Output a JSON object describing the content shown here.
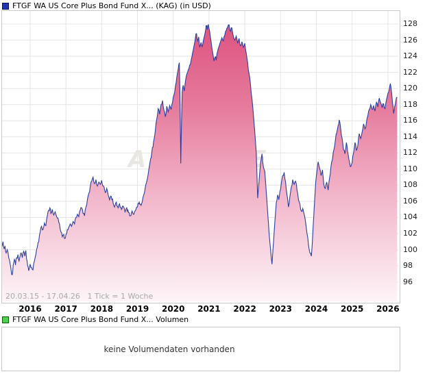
{
  "header": {
    "title": "FTGF WA US Core Plus Bond Fund X... (KAG) (in USD)"
  },
  "volume_panel": {
    "title": "FTGF WA US Core Plus Bond Fund X... Volumen",
    "message": "keine Volumendaten vorhanden"
  },
  "theme": {
    "line": "#2b3e9e",
    "fill_top": "#dd537f",
    "fill_mid1": "#e67b9d",
    "fill_mid2": "#f2b6ca",
    "fill_bottom": "#fdf4f8",
    "grid": "#e4e4e4",
    "plot_border": "#c9c9c9",
    "axis_text": "#1a1a1a",
    "muted_text": "#a8a8a8",
    "watermark_color": "#eae6e1",
    "legend_blue_fill": "#2133b0",
    "legend_blue_border": "#0a1560",
    "legend_green_fill": "#4ad44a",
    "legend_green_border": "#0a540a"
  },
  "chart_data": {
    "type": "area",
    "series_name": "FTGF WA US Core Plus Bond Fund X... (KAG)",
    "currency": "USD",
    "title": "FTGF WA US Core Plus Bond Fund X... (KAG) (in USD)",
    "date_range_label": "20.03.15 - 17.04.26",
    "tick_note": "1 Tick = 1 Woche",
    "watermark": "ARIVA.DE",
    "grid": true,
    "y_axis_side": "right",
    "x_ticks": [
      2016,
      2017,
      2018,
      2019,
      2020,
      2021,
      2022,
      2023,
      2024,
      2025,
      2026
    ],
    "y_ticks": [
      96,
      98,
      100,
      102,
      104,
      106,
      108,
      110,
      112,
      114,
      116,
      118,
      120,
      122,
      124,
      126,
      128
    ],
    "xlim": [
      "2015-03-20",
      "2026-04-17"
    ],
    "ylim": [
      93.4,
      129.6
    ],
    "x_start_decimal_year": 2015.215,
    "x_end_decimal_year": 2026.29,
    "points": [
      [
        2015.215,
        100.4
      ],
      [
        2015.24,
        101.0
      ],
      [
        2015.27,
        100.1
      ],
      [
        2015.3,
        100.4
      ],
      [
        2015.33,
        99.6
      ],
      [
        2015.36,
        100.0
      ],
      [
        2015.4,
        99.0
      ],
      [
        2015.44,
        98.3
      ],
      [
        2015.47,
        97.4
      ],
      [
        2015.5,
        96.9
      ],
      [
        2015.53,
        98.2
      ],
      [
        2015.56,
        98.8
      ],
      [
        2015.59,
        98.1
      ],
      [
        2015.62,
        99.0
      ],
      [
        2015.66,
        99.4
      ],
      [
        2015.69,
        98.6
      ],
      [
        2015.72,
        99.2
      ],
      [
        2015.75,
        99.6
      ],
      [
        2015.78,
        99.0
      ],
      [
        2015.82,
        99.8
      ],
      [
        2015.85,
        99.2
      ],
      [
        2015.88,
        99.9
      ],
      [
        2015.9,
        98.9
      ],
      [
        2015.93,
        98.0
      ],
      [
        2015.96,
        97.4
      ],
      [
        2016.0,
        98.2
      ],
      [
        2016.04,
        97.8
      ],
      [
        2016.08,
        97.5
      ],
      [
        2016.12,
        98.6
      ],
      [
        2016.16,
        99.4
      ],
      [
        2016.2,
        100.3
      ],
      [
        2016.24,
        101.0
      ],
      [
        2016.28,
        102.2
      ],
      [
        2016.32,
        102.9
      ],
      [
        2016.36,
        102.5
      ],
      [
        2016.4,
        103.3
      ],
      [
        2016.44,
        103.0
      ],
      [
        2016.48,
        104.2
      ],
      [
        2016.52,
        104.9
      ],
      [
        2016.55,
        105.2
      ],
      [
        2016.58,
        104.5
      ],
      [
        2016.62,
        105.0
      ],
      [
        2016.66,
        104.3
      ],
      [
        2016.7,
        104.7
      ],
      [
        2016.74,
        104.1
      ],
      [
        2016.78,
        103.9
      ],
      [
        2016.82,
        103.2
      ],
      [
        2016.86,
        102.2
      ],
      [
        2016.9,
        101.6
      ],
      [
        2016.94,
        101.9
      ],
      [
        2016.97,
        101.4
      ],
      [
        2017.0,
        101.9
      ],
      [
        2017.04,
        102.5
      ],
      [
        2017.08,
        102.8
      ],
      [
        2017.12,
        103.2
      ],
      [
        2017.16,
        102.9
      ],
      [
        2017.2,
        103.5
      ],
      [
        2017.24,
        103.2
      ],
      [
        2017.28,
        104.0
      ],
      [
        2017.32,
        104.4
      ],
      [
        2017.36,
        104.1
      ],
      [
        2017.4,
        104.9
      ],
      [
        2017.44,
        105.2
      ],
      [
        2017.48,
        104.5
      ],
      [
        2017.52,
        104.2
      ],
      [
        2017.56,
        105.3
      ],
      [
        2017.6,
        106.2
      ],
      [
        2017.64,
        107.0
      ],
      [
        2017.68,
        107.8
      ],
      [
        2017.72,
        108.5
      ],
      [
        2017.76,
        109.0
      ],
      [
        2017.8,
        108.2
      ],
      [
        2017.84,
        108.7
      ],
      [
        2017.88,
        107.9
      ],
      [
        2017.92,
        108.4
      ],
      [
        2017.96,
        108.1
      ],
      [
        2018.0,
        108.6
      ],
      [
        2018.05,
        107.9
      ],
      [
        2018.1,
        107.1
      ],
      [
        2018.14,
        107.6
      ],
      [
        2018.18,
        106.8
      ],
      [
        2018.22,
        106.2
      ],
      [
        2018.27,
        106.6
      ],
      [
        2018.32,
        105.8
      ],
      [
        2018.36,
        105.3
      ],
      [
        2018.41,
        105.9
      ],
      [
        2018.46,
        105.2
      ],
      [
        2018.5,
        105.7
      ],
      [
        2018.55,
        105.0
      ],
      [
        2018.6,
        105.4
      ],
      [
        2018.65,
        104.7
      ],
      [
        2018.7,
        105.2
      ],
      [
        2018.75,
        104.6
      ],
      [
        2018.8,
        104.2
      ],
      [
        2018.85,
        104.8
      ],
      [
        2018.9,
        104.4
      ],
      [
        2018.95,
        104.9
      ],
      [
        2019.0,
        105.3
      ],
      [
        2019.05,
        105.9
      ],
      [
        2019.1,
        105.5
      ],
      [
        2019.15,
        106.4
      ],
      [
        2019.2,
        107.2
      ],
      [
        2019.25,
        108.3
      ],
      [
        2019.3,
        109.4
      ],
      [
        2019.35,
        110.8
      ],
      [
        2019.4,
        112.0
      ],
      [
        2019.45,
        113.4
      ],
      [
        2019.5,
        114.8
      ],
      [
        2019.54,
        116.2
      ],
      [
        2019.58,
        117.5
      ],
      [
        2019.62,
        116.8
      ],
      [
        2019.66,
        118.0
      ],
      [
        2019.7,
        118.5
      ],
      [
        2019.74,
        117.3
      ],
      [
        2019.78,
        116.5
      ],
      [
        2019.82,
        117.8
      ],
      [
        2019.86,
        117.1
      ],
      [
        2019.9,
        117.9
      ],
      [
        2019.94,
        117.4
      ],
      [
        2019.98,
        118.3
      ],
      [
        2020.02,
        119.2
      ],
      [
        2020.06,
        120.3
      ],
      [
        2020.1,
        121.4
      ],
      [
        2020.14,
        122.4
      ],
      [
        2020.17,
        123.2
      ],
      [
        2020.19,
        119.0
      ],
      [
        2020.21,
        110.7
      ],
      [
        2020.23,
        115.5
      ],
      [
        2020.25,
        119.6
      ],
      [
        2020.28,
        120.4
      ],
      [
        2020.31,
        119.7
      ],
      [
        2020.34,
        120.9
      ],
      [
        2020.38,
        121.8
      ],
      [
        2020.42,
        122.3
      ],
      [
        2020.46,
        122.9
      ],
      [
        2020.5,
        123.5
      ],
      [
        2020.54,
        124.4
      ],
      [
        2020.58,
        125.3
      ],
      [
        2020.62,
        126.3
      ],
      [
        2020.65,
        126.8
      ],
      [
        2020.68,
        125.9
      ],
      [
        2020.71,
        126.4
      ],
      [
        2020.74,
        125.1
      ],
      [
        2020.78,
        125.7
      ],
      [
        2020.81,
        125.2
      ],
      [
        2020.85,
        126.1
      ],
      [
        2020.89,
        126.9
      ],
      [
        2020.92,
        127.8
      ],
      [
        2020.95,
        127.3
      ],
      [
        2020.98,
        127.9
      ],
      [
        2021.02,
        127.0
      ],
      [
        2021.06,
        125.8
      ],
      [
        2021.1,
        124.5
      ],
      [
        2021.14,
        123.4
      ],
      [
        2021.17,
        123.9
      ],
      [
        2021.2,
        123.5
      ],
      [
        2021.24,
        124.6
      ],
      [
        2021.28,
        125.2
      ],
      [
        2021.32,
        125.8
      ],
      [
        2021.36,
        126.3
      ],
      [
        2021.4,
        125.9
      ],
      [
        2021.44,
        126.6
      ],
      [
        2021.48,
        127.2
      ],
      [
        2021.52,
        127.6
      ],
      [
        2021.56,
        127.9
      ],
      [
        2021.6,
        127.1
      ],
      [
        2021.64,
        127.5
      ],
      [
        2021.68,
        126.5
      ],
      [
        2021.72,
        126.0
      ],
      [
        2021.76,
        126.5
      ],
      [
        2021.8,
        125.6
      ],
      [
        2021.84,
        126.2
      ],
      [
        2021.88,
        125.3
      ],
      [
        2021.92,
        125.8
      ],
      [
        2021.96,
        125.1
      ],
      [
        2022.0,
        125.6
      ],
      [
        2022.04,
        124.4
      ],
      [
        2022.08,
        123.2
      ],
      [
        2022.12,
        121.8
      ],
      [
        2022.16,
        120.4
      ],
      [
        2022.2,
        118.8
      ],
      [
        2022.24,
        116.8
      ],
      [
        2022.28,
        114.6
      ],
      [
        2022.32,
        112.0
      ],
      [
        2022.36,
        106.4
      ],
      [
        2022.4,
        108.6
      ],
      [
        2022.44,
        110.8
      ],
      [
        2022.48,
        111.9
      ],
      [
        2022.52,
        110.3
      ],
      [
        2022.56,
        109.7
      ],
      [
        2022.6,
        107.2
      ],
      [
        2022.64,
        104.6
      ],
      [
        2022.68,
        102.0
      ],
      [
        2022.72,
        100.0
      ],
      [
        2022.76,
        98.2
      ],
      [
        2022.8,
        100.8
      ],
      [
        2022.84,
        103.4
      ],
      [
        2022.88,
        105.8
      ],
      [
        2022.92,
        106.8
      ],
      [
        2022.95,
        106.2
      ],
      [
        2022.98,
        107.2
      ],
      [
        2023.02,
        108.2
      ],
      [
        2023.06,
        109.2
      ],
      [
        2023.1,
        109.6
      ],
      [
        2023.14,
        108.4
      ],
      [
        2023.18,
        106.8
      ],
      [
        2023.22,
        105.3
      ],
      [
        2023.26,
        106.6
      ],
      [
        2023.3,
        107.8
      ],
      [
        2023.34,
        108.7
      ],
      [
        2023.38,
        108.1
      ],
      [
        2023.42,
        108.5
      ],
      [
        2023.46,
        107.4
      ],
      [
        2023.5,
        106.2
      ],
      [
        2023.54,
        105.7
      ],
      [
        2023.58,
        104.8
      ],
      [
        2023.62,
        105.1
      ],
      [
        2023.66,
        104.4
      ],
      [
        2023.7,
        103.4
      ],
      [
        2023.74,
        102.0
      ],
      [
        2023.78,
        100.6
      ],
      [
        2023.82,
        99.6
      ],
      [
        2023.86,
        99.2
      ],
      [
        2023.89,
        101.0
      ],
      [
        2023.92,
        103.6
      ],
      [
        2023.95,
        106.0
      ],
      [
        2023.98,
        108.2
      ],
      [
        2024.02,
        109.8
      ],
      [
        2024.05,
        110.9
      ],
      [
        2024.09,
        110.1
      ],
      [
        2024.13,
        109.2
      ],
      [
        2024.17,
        109.9
      ],
      [
        2024.21,
        108.1
      ],
      [
        2024.25,
        107.6
      ],
      [
        2024.29,
        108.4
      ],
      [
        2024.33,
        107.4
      ],
      [
        2024.37,
        108.9
      ],
      [
        2024.41,
        110.4
      ],
      [
        2024.45,
        111.2
      ],
      [
        2024.49,
        112.4
      ],
      [
        2024.53,
        113.5
      ],
      [
        2024.57,
        114.5
      ],
      [
        2024.61,
        115.4
      ],
      [
        2024.64,
        116.1
      ],
      [
        2024.68,
        115.0
      ],
      [
        2024.72,
        113.8
      ],
      [
        2024.76,
        112.4
      ],
      [
        2024.8,
        111.9
      ],
      [
        2024.84,
        113.3
      ],
      [
        2024.87,
        112.3
      ],
      [
        2024.91,
        111.2
      ],
      [
        2024.95,
        110.3
      ],
      [
        2025.0,
        110.8
      ],
      [
        2025.04,
        112.0
      ],
      [
        2025.08,
        113.3
      ],
      [
        2025.12,
        112.3
      ],
      [
        2025.16,
        112.9
      ],
      [
        2025.2,
        114.4
      ],
      [
        2025.24,
        113.8
      ],
      [
        2025.28,
        114.6
      ],
      [
        2025.32,
        115.6
      ],
      [
        2025.36,
        115.0
      ],
      [
        2025.4,
        115.8
      ],
      [
        2025.44,
        116.6
      ],
      [
        2025.48,
        117.4
      ],
      [
        2025.52,
        118.0
      ],
      [
        2025.56,
        117.4
      ],
      [
        2025.6,
        117.9
      ],
      [
        2025.64,
        117.2
      ],
      [
        2025.68,
        118.3
      ],
      [
        2025.72,
        117.7
      ],
      [
        2025.76,
        118.8
      ],
      [
        2025.8,
        118.2
      ],
      [
        2025.84,
        117.6
      ],
      [
        2025.88,
        118.1
      ],
      [
        2025.92,
        117.5
      ],
      [
        2025.96,
        118.6
      ],
      [
        2026.0,
        119.4
      ],
      [
        2026.04,
        120.0
      ],
      [
        2026.07,
        120.6
      ],
      [
        2026.1,
        119.6
      ],
      [
        2026.13,
        118.2
      ],
      [
        2026.16,
        116.9
      ],
      [
        2026.19,
        117.8
      ],
      [
        2026.22,
        118.4
      ],
      [
        2026.26,
        118.9
      ]
    ]
  }
}
